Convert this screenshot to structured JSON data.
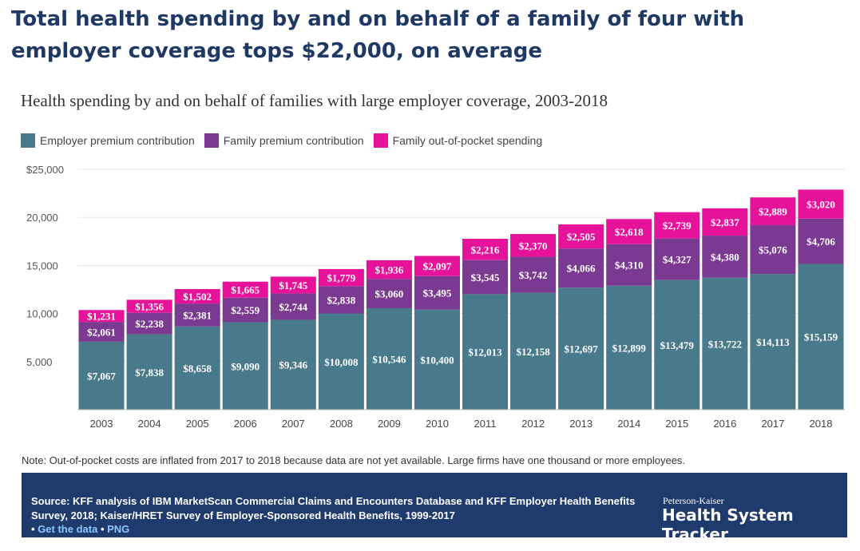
{
  "headline": "Total health spending by and on behalf of a family of four with employer coverage tops $22,000, on average",
  "colors": {
    "employer": "#497a8c",
    "family": "#7b3a91",
    "oop": "#e6139a",
    "footer": "#1f3b6e"
  },
  "chart_data": {
    "type": "bar",
    "stacked": true,
    "title": "Health spending by and on behalf of families with large employer coverage, 2003-2018",
    "xlabel": "",
    "ylabel": "",
    "ylim": [
      0,
      25000
    ],
    "yticks": [
      "5,000",
      "10,000",
      "15,000",
      "20,000",
      "$25,000"
    ],
    "ytick_values": [
      5000,
      10000,
      15000,
      20000,
      25000
    ],
    "grid": true,
    "legend_position": "top-left",
    "categories": [
      "2003",
      "2004",
      "2005",
      "2006",
      "2007",
      "2008",
      "2009",
      "2010",
      "2011",
      "2012",
      "2013",
      "2014",
      "2015",
      "2016",
      "2017",
      "2018"
    ],
    "series": [
      {
        "name": "Employer premium contribution",
        "values": [
          7067,
          7838,
          8658,
          9090,
          9346,
          10008,
          10546,
          10400,
          12013,
          12158,
          12697,
          12899,
          13479,
          13722,
          14113,
          15159
        ],
        "labels": [
          "$7,067",
          "$7,838",
          "$8,658",
          "$9,090",
          "$9,346",
          "$10,008",
          "$10,546",
          "$10,400",
          "$12,013",
          "$12,158",
          "$12,697",
          "$12,899",
          "$13,479",
          "$13,722",
          "$14,113",
          "$15,159"
        ]
      },
      {
        "name": "Family premium contribution",
        "values": [
          2061,
          2238,
          2381,
          2559,
          2744,
          2838,
          3060,
          3495,
          3545,
          3742,
          4066,
          4310,
          4327,
          4380,
          5076,
          4706
        ],
        "labels": [
          "$2,061",
          "$2,238",
          "$2,381",
          "$2,559",
          "$2,744",
          "$2,838",
          "$3,060",
          "$3,495",
          "$3,545",
          "$3,742",
          "$4,066",
          "$4,310",
          "$4,327",
          "$4,380",
          "$5,076",
          "$4,706"
        ]
      },
      {
        "name": "Family out-of-pocket spending",
        "values": [
          1231,
          1356,
          1502,
          1665,
          1745,
          1779,
          1936,
          2097,
          2216,
          2370,
          2505,
          2618,
          2739,
          2837,
          2889,
          3020
        ],
        "labels": [
          "$1,231",
          "$1,356",
          "$1,502",
          "$1,665",
          "$1,745",
          "$1,779",
          "$1,936",
          "$2,097",
          "$2,216",
          "$2,370",
          "$2,505",
          "$2,618",
          "$2,739",
          "$2,837",
          "$2,889",
          "$3,020"
        ]
      }
    ]
  },
  "note": "Note: Out-of-pocket costs are inflated from 2017 to 2018 because data are not yet available. Large firms have one thousand or more employees.",
  "footer": {
    "source": "Source: KFF analysis of IBM MarketScan Commercial Claims and Encounters Database and KFF Employer Health Benefits Survey, 2018; Kaiser/HRET Survey of Employer-Sponsored Health Benefits, 1999-2017",
    "bullet": "•",
    "link_data": "Get the data",
    "link_png": "PNG",
    "brand_small": "Peterson-Kaiser",
    "brand": "Health System Tracker"
  }
}
